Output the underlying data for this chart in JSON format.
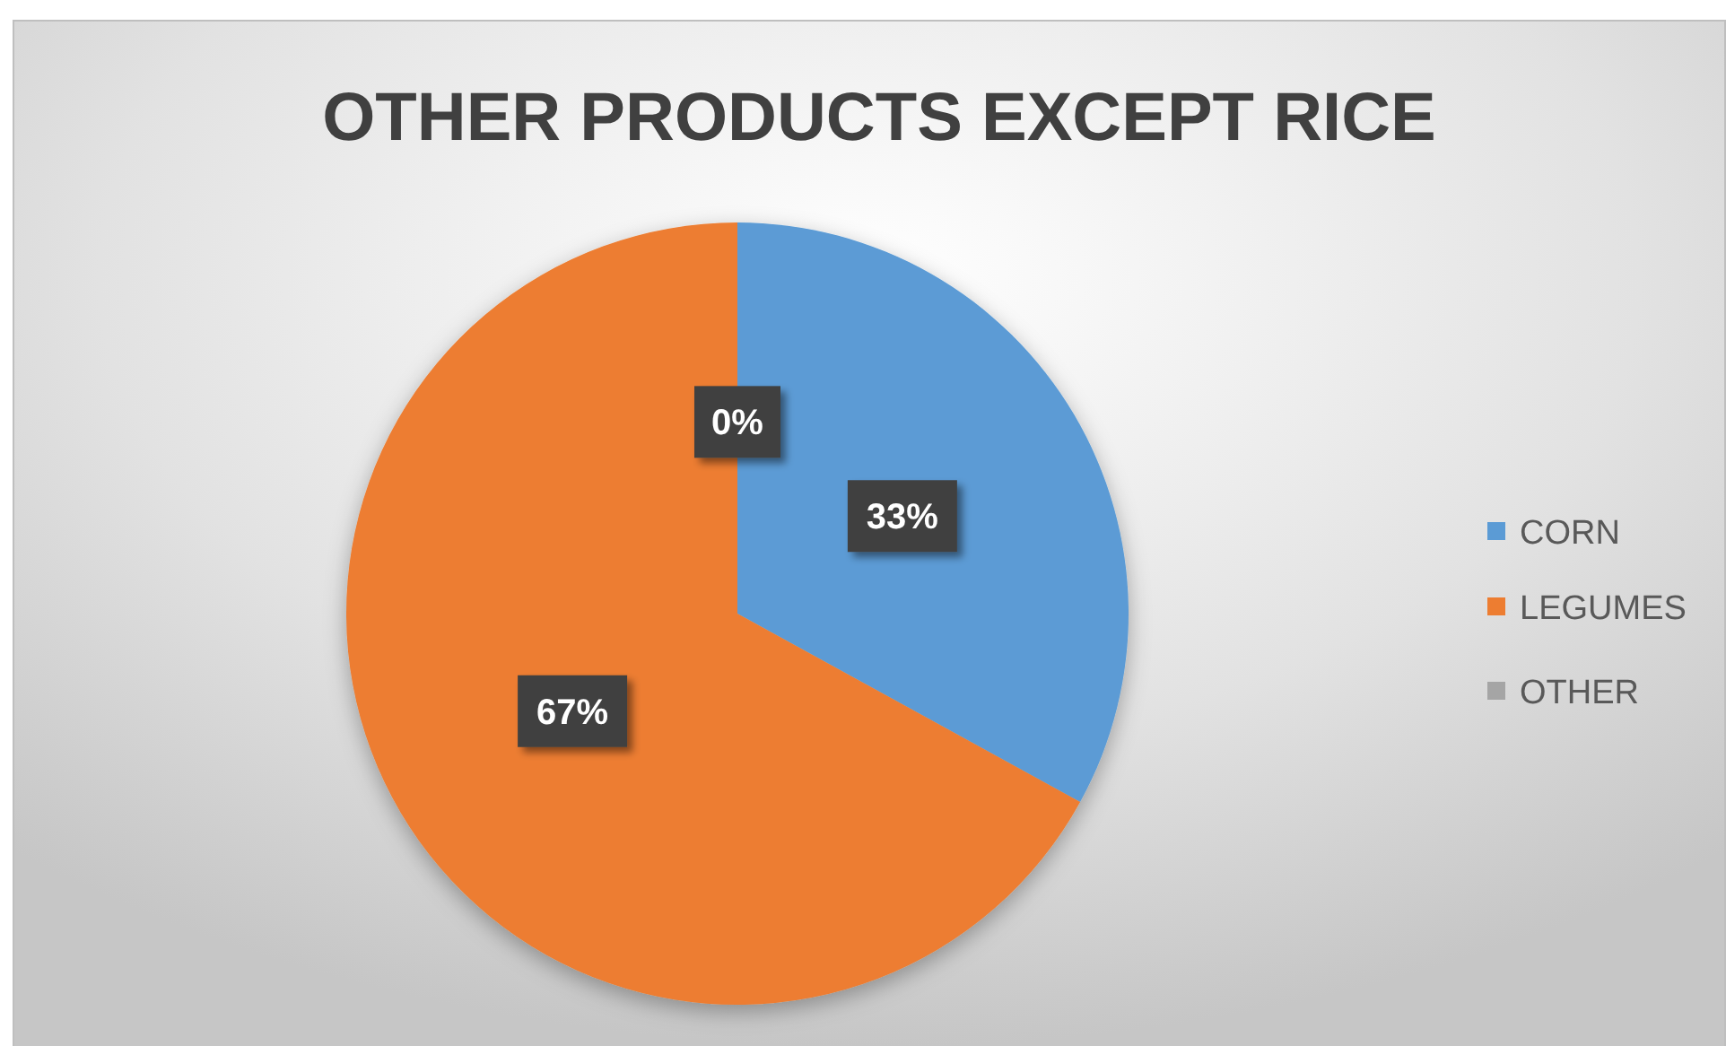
{
  "chart_data": {
    "type": "pie",
    "title": "OTHER PRODUCTS EXCEPT RICE",
    "categories": [
      "CORN",
      "LEGUMES",
      "OTHER"
    ],
    "values": [
      33,
      67,
      0
    ],
    "colors": [
      "#5b9bd5",
      "#ed7d31",
      "#a5a5a5"
    ],
    "value_labels": [
      "33%",
      "67%",
      "0%"
    ],
    "legend": "right"
  }
}
